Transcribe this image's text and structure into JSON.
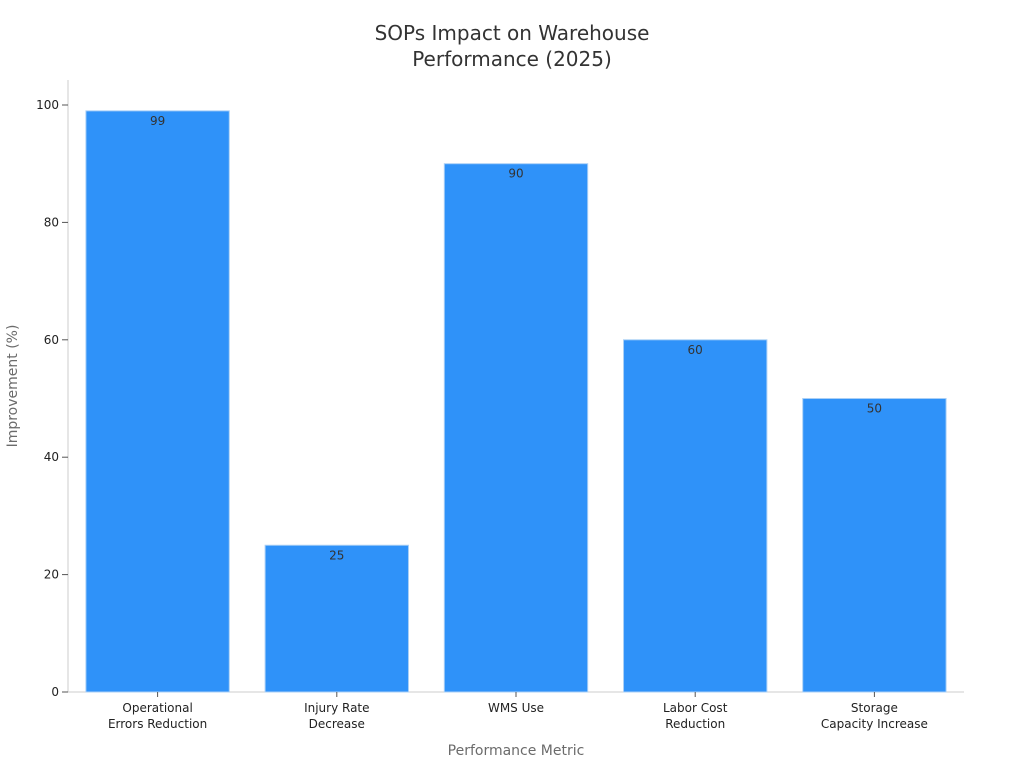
{
  "chart_data": {
    "type": "bar",
    "title_lines": [
      "SOPs Impact on Warehouse",
      "Performance (2025)"
    ],
    "xlabel": "Performance Metric",
    "ylabel": "Improvement (%)",
    "categories": [
      [
        "Operational",
        "Errors Reduction"
      ],
      [
        "Injury Rate",
        "Decrease"
      ],
      [
        "WMS Use"
      ],
      [
        "Labor Cost",
        "Reduction"
      ],
      [
        "Storage",
        "Capacity Increase"
      ]
    ],
    "values": [
      99,
      25,
      90,
      60,
      50
    ],
    "data_labels": [
      "99",
      "25",
      "90",
      "60",
      "50"
    ],
    "yticks": [
      0,
      20,
      40,
      60,
      80,
      100
    ],
    "ylim": [
      0,
      104
    ],
    "bar_color": "#2f92f9",
    "grid": false,
    "legend": "none"
  }
}
